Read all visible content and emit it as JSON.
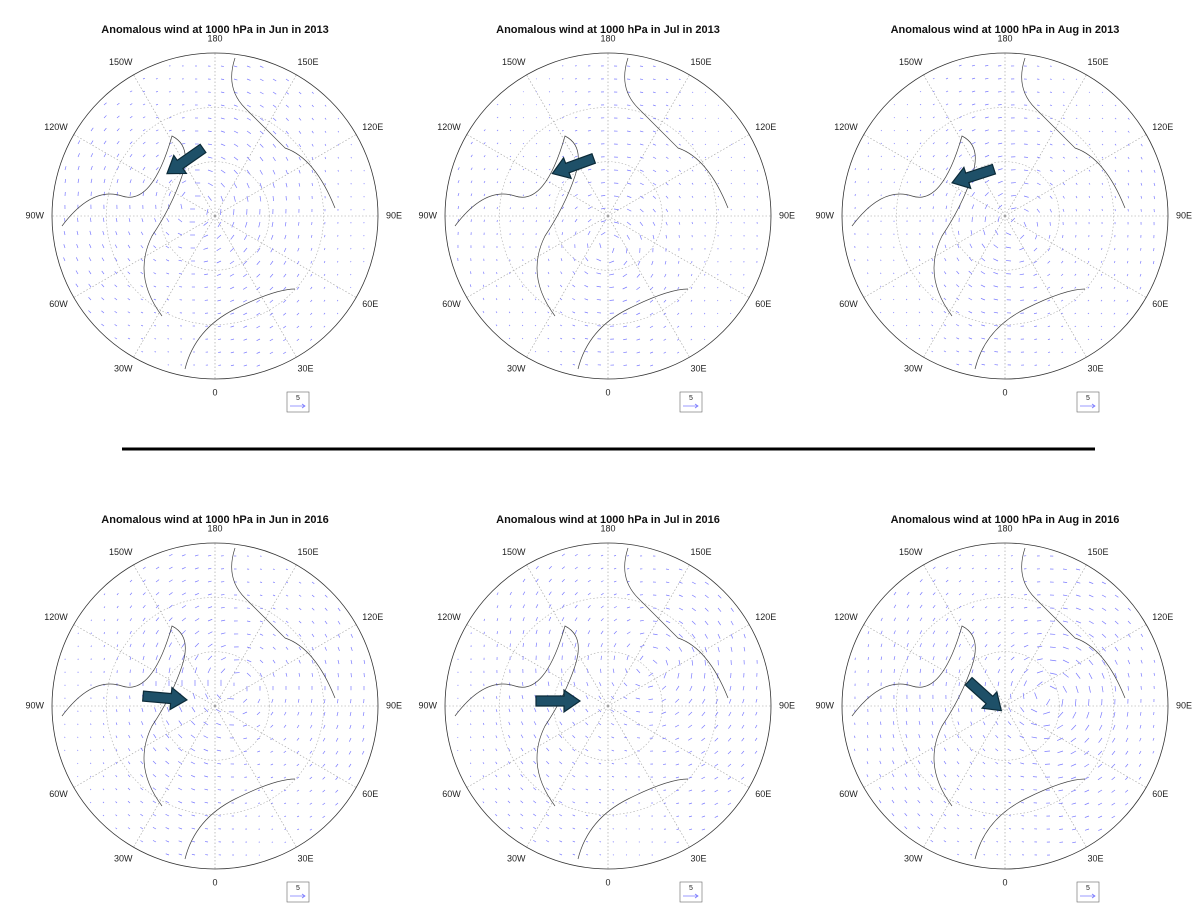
{
  "panels": [
    {
      "title": "Anomalous wind at 1000 hPa in Jun in 2013"
    },
    {
      "title": "Anomalous wind at 1000 hPa in Jul in 2013"
    },
    {
      "title": "Anomalous wind at 1000 hPa in Aug in 2013"
    },
    {
      "title": "Anomalous wind at 1000 hPa in Jun in 2016"
    },
    {
      "title": "Anomalous wind at 1000 hPa in Jul in 2016"
    },
    {
      "title": "Anomalous wind at 1000 hPa in Aug in 2016"
    }
  ],
  "longitude_labels": [
    "180",
    "150E",
    "120E",
    "90E",
    "60E",
    "30E",
    "0",
    "30W",
    "60W",
    "90W",
    "120W",
    "150W"
  ],
  "reference_vector_label": "5"
}
